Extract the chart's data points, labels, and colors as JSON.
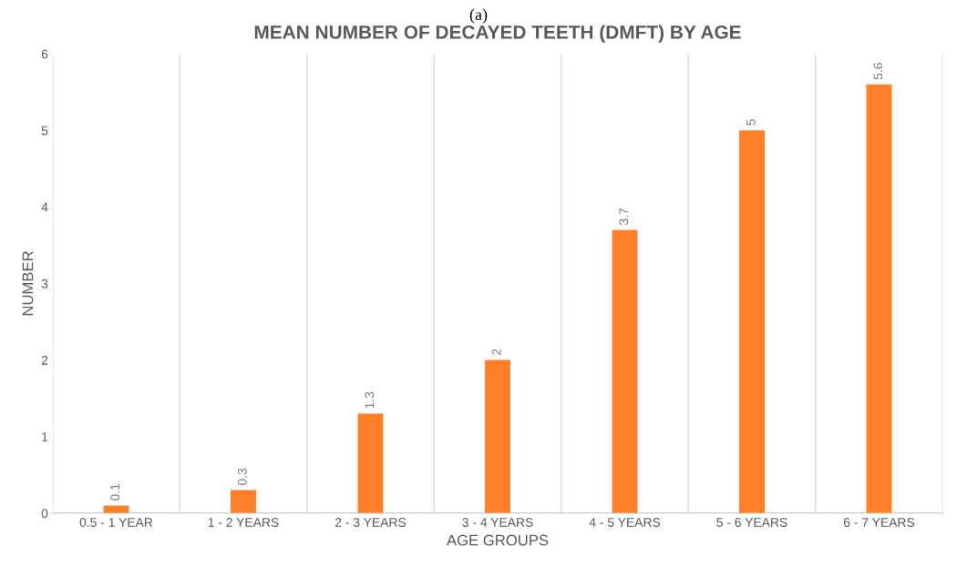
{
  "chart_data": {
    "type": "bar",
    "title": "MEAN NUMBER OF DECAYED TEETH (DMFT) BY AGE",
    "xlabel": "AGE GROUPS",
    "ylabel": "NUMBER",
    "annotations": [
      "(a)"
    ],
    "categories": [
      "0.5 - 1 YEAR",
      "1 - 2 YEARS",
      "2 - 3 YEARS",
      "3 - 4 YEARS",
      "4 - 5 YEARS",
      "5 - 6 YEARS",
      "6 - 7 YEARS"
    ],
    "values": [
      0.1,
      0.3,
      1.3,
      2,
      3.7,
      5,
      5.6
    ],
    "color": "#ff7f27",
    "ylim": [
      0,
      6
    ],
    "yticks": [
      0,
      1,
      2,
      3,
      4,
      5,
      6
    ],
    "grid": "x",
    "data_labels": true,
    "legend": false
  }
}
